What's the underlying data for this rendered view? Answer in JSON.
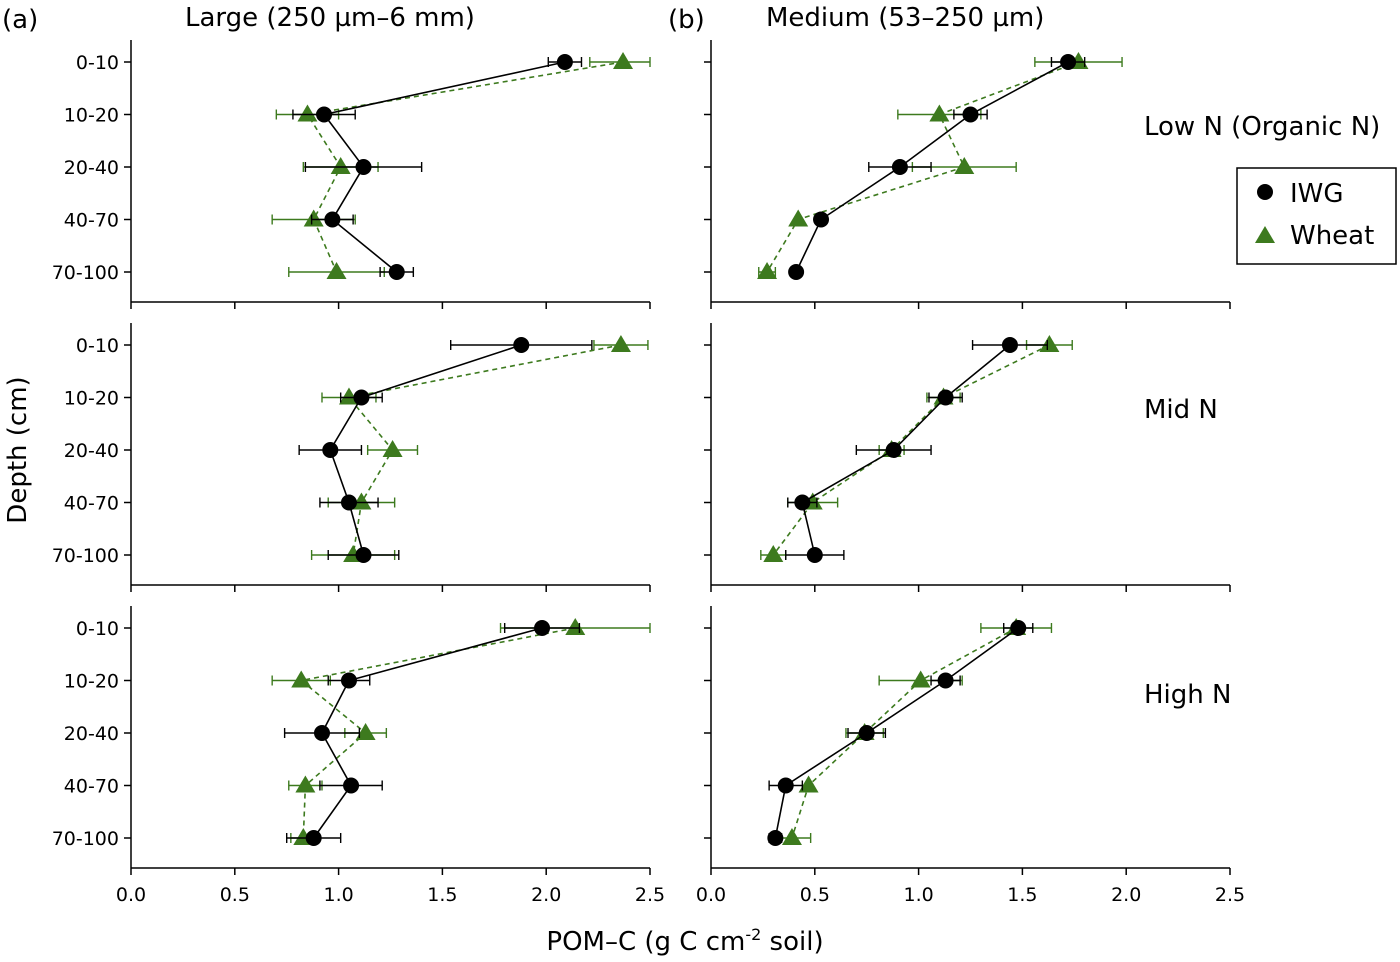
{
  "chart_data": {
    "type": "scatter",
    "xlabel": "POM–C (g C cm",
    "xlabel_sup": "-2",
    "xlabel_end": " soil)",
    "ylabel": "Depth (cm)",
    "xlim": [
      0.0,
      2.5
    ],
    "xticks": [
      "0.0",
      "0.5",
      "1.0",
      "1.5",
      "2.0",
      "2.5"
    ],
    "depths": [
      "0-10",
      "10-20",
      "20-40",
      "40-70",
      "70-100"
    ],
    "columns": [
      {
        "tag": "(a)",
        "title": "Large (250  µm–6 mm)"
      },
      {
        "tag": "(b)",
        "title": "Medium (53–250 µm)"
      }
    ],
    "rows": [
      "Low N (Organic N)",
      "Mid N",
      "High N"
    ],
    "legend": {
      "position": "right",
      "items": [
        "IWG",
        "Wheat"
      ]
    },
    "colors": {
      "IWG": "#000000",
      "Wheat": "#3d7a1e"
    },
    "panels": [
      {
        "row": 0,
        "col": 0,
        "IWG": {
          "values": [
            2.09,
            0.93,
            1.12,
            0.97,
            1.28
          ],
          "errors": [
            0.08,
            0.15,
            0.28,
            0.1,
            0.08
          ]
        },
        "Wheat": {
          "values": [
            2.37,
            0.85,
            1.01,
            0.88,
            0.99
          ],
          "errors": [
            0.16,
            0.15,
            0.18,
            0.2,
            0.23
          ]
        }
      },
      {
        "row": 0,
        "col": 1,
        "IWG": {
          "values": [
            1.72,
            1.25,
            0.91,
            0.53,
            0.41
          ],
          "errors": [
            0.08,
            0.08,
            0.15,
            0.0,
            0.0
          ]
        },
        "Wheat": {
          "values": [
            1.77,
            1.1,
            1.22,
            0.42,
            0.27
          ],
          "errors": [
            0.21,
            0.2,
            0.25,
            0.0,
            0.04
          ]
        }
      },
      {
        "row": 1,
        "col": 0,
        "IWG": {
          "values": [
            1.88,
            1.11,
            0.96,
            1.05,
            1.12
          ],
          "errors": [
            0.34,
            0.1,
            0.15,
            0.14,
            0.17
          ]
        },
        "Wheat": {
          "values": [
            2.36,
            1.05,
            1.26,
            1.11,
            1.07
          ],
          "errors": [
            0.13,
            0.13,
            0.12,
            0.16,
            0.2
          ]
        }
      },
      {
        "row": 1,
        "col": 1,
        "IWG": {
          "values": [
            1.44,
            1.13,
            0.88,
            0.44,
            0.5
          ],
          "errors": [
            0.18,
            0.08,
            0.18,
            0.07,
            0.14
          ]
        },
        "Wheat": {
          "values": [
            1.63,
            1.12,
            0.87,
            0.49,
            0.3
          ],
          "errors": [
            0.11,
            0.08,
            0.06,
            0.12,
            0.06
          ]
        }
      },
      {
        "row": 2,
        "col": 0,
        "IWG": {
          "values": [
            1.98,
            1.05,
            0.92,
            1.06,
            0.88
          ],
          "errors": [
            0.18,
            0.1,
            0.18,
            0.15,
            0.13
          ]
        },
        "Wheat": {
          "values": [
            2.14,
            0.82,
            1.13,
            0.84,
            0.83
          ],
          "errors": [
            0.36,
            0.14,
            0.1,
            0.08,
            0.06
          ]
        }
      },
      {
        "row": 2,
        "col": 1,
        "IWG": {
          "values": [
            1.48,
            1.13,
            0.75,
            0.36,
            0.31
          ],
          "errors": [
            0.07,
            0.07,
            0.09,
            0.08,
            0.03
          ]
        },
        "Wheat": {
          "values": [
            1.47,
            1.01,
            0.74,
            0.47,
            0.39
          ],
          "errors": [
            0.17,
            0.2,
            0.09,
            0.0,
            0.09
          ]
        }
      }
    ]
  }
}
